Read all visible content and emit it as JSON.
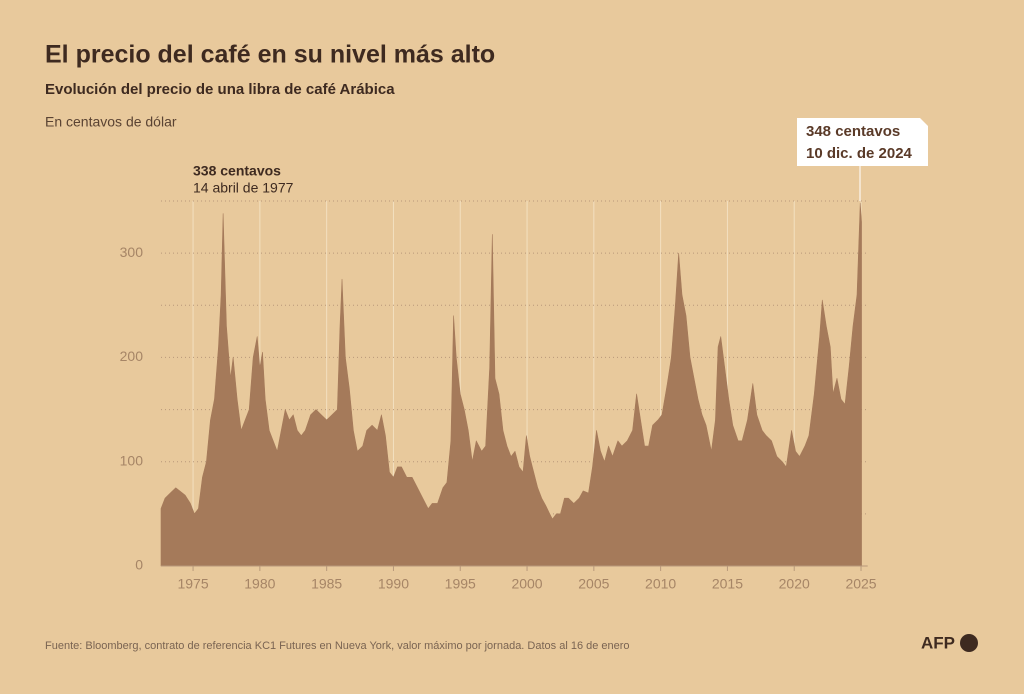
{
  "chart_data": {
    "type": "area",
    "title": "El precio del café en su nivel más alto",
    "subtitle": "Evolución del precio de una libra de café Arábica",
    "y_label": "En centavos de dólar",
    "source": "Fuente: Bloomberg, contrato de referencia KC1 Futures en Nueva York, valor máximo por jornada. Datos al 16 de enero",
    "logo": "AFP",
    "annotations": [
      {
        "lines": [
          "338 centavos",
          "14 abril de 1977"
        ]
      },
      {
        "lines": [
          "348 centavos",
          "10 dic. de 2024"
        ]
      }
    ],
    "color": "#a57a5a",
    "xlim": [
      1972.6,
      2025.5
    ],
    "xticks": [
      1975,
      1980,
      1985,
      1990,
      1995,
      2000,
      2005,
      2010,
      2015,
      2020,
      2025
    ],
    "ylim": [
      0,
      350
    ],
    "yticks": [
      0,
      100,
      200,
      300
    ],
    "ygrid": [
      50,
      100,
      150,
      200,
      250,
      300,
      350
    ],
    "grid": true,
    "x": [
      1972.6,
      1972.9,
      1973.3,
      1973.7,
      1974.0,
      1974.4,
      1974.8,
      1975.1,
      1975.4,
      1975.7,
      1976.0,
      1976.3,
      1976.6,
      1976.9,
      1977.1,
      1977.25,
      1977.5,
      1977.8,
      1978.0,
      1978.3,
      1978.6,
      1978.9,
      1979.2,
      1979.5,
      1979.8,
      1980.0,
      1980.2,
      1980.4,
      1980.7,
      1981.0,
      1981.3,
      1981.6,
      1981.9,
      1982.2,
      1982.5,
      1982.8,
      1983.1,
      1983.4,
      1983.8,
      1984.2,
      1984.6,
      1985.0,
      1985.4,
      1985.8,
      1986.0,
      1986.15,
      1986.4,
      1986.7,
      1987.0,
      1987.3,
      1987.7,
      1988.0,
      1988.4,
      1988.8,
      1989.1,
      1989.4,
      1989.7,
      1990.0,
      1990.3,
      1990.6,
      1991.0,
      1991.4,
      1991.8,
      1992.2,
      1992.6,
      1992.9,
      1993.3,
      1993.7,
      1994.0,
      1994.3,
      1994.5,
      1994.7,
      1995.0,
      1995.3,
      1995.6,
      1995.9,
      1996.2,
      1996.6,
      1996.9,
      1997.2,
      1997.4,
      1997.6,
      1997.9,
      1998.2,
      1998.5,
      1998.8,
      1999.1,
      1999.4,
      1999.7,
      1999.95,
      2000.2,
      2000.5,
      2000.8,
      2001.1,
      2001.4,
      2001.7,
      2001.9,
      2002.2,
      2002.5,
      2002.8,
      2003.1,
      2003.5,
      2003.9,
      2004.2,
      2004.6,
      2004.9,
      2005.2,
      2005.5,
      2005.8,
      2006.1,
      2006.4,
      2006.8,
      2007.1,
      2007.5,
      2007.9,
      2008.2,
      2008.5,
      2008.8,
      2009.1,
      2009.4,
      2009.8,
      2010.1,
      2010.5,
      2010.8,
      2011.1,
      2011.35,
      2011.6,
      2011.9,
      2012.2,
      2012.5,
      2012.8,
      2013.1,
      2013.4,
      2013.8,
      2014.1,
      2014.3,
      2014.5,
      2014.8,
      2015.1,
      2015.4,
      2015.8,
      2016.1,
      2016.5,
      2016.9,
      2017.2,
      2017.6,
      2017.9,
      2018.3,
      2018.7,
      2019.1,
      2019.4,
      2019.8,
      2020.1,
      2020.4,
      2020.8,
      2021.1,
      2021.5,
      2021.9,
      2022.1,
      2022.4,
      2022.7,
      2022.9,
      2023.2,
      2023.5,
      2023.8,
      2024.1,
      2024.4,
      2024.7,
      2024.94,
      2025.04
    ],
    "values": [
      55,
      65,
      70,
      75,
      72,
      68,
      60,
      50,
      55,
      85,
      100,
      140,
      160,
      210,
      260,
      338,
      230,
      180,
      200,
      160,
      130,
      140,
      150,
      200,
      220,
      190,
      205,
      160,
      130,
      120,
      110,
      130,
      150,
      140,
      145,
      130,
      125,
      130,
      145,
      150,
      145,
      140,
      145,
      150,
      230,
      275,
      200,
      170,
      130,
      110,
      115,
      130,
      135,
      130,
      145,
      125,
      90,
      85,
      95,
      95,
      85,
      85,
      75,
      65,
      55,
      60,
      60,
      75,
      80,
      120,
      240,
      200,
      165,
      150,
      130,
      100,
      120,
      110,
      115,
      190,
      318,
      180,
      165,
      130,
      115,
      105,
      110,
      95,
      90,
      125,
      105,
      90,
      75,
      65,
      58,
      50,
      45,
      50,
      50,
      65,
      65,
      60,
      65,
      72,
      70,
      95,
      130,
      110,
      100,
      115,
      105,
      120,
      115,
      120,
      130,
      165,
      140,
      115,
      115,
      135,
      140,
      145,
      175,
      200,
      250,
      300,
      260,
      240,
      200,
      180,
      160,
      145,
      135,
      110,
      140,
      210,
      220,
      190,
      160,
      135,
      120,
      120,
      140,
      175,
      145,
      130,
      125,
      120,
      105,
      100,
      95,
      130,
      110,
      105,
      115,
      125,
      165,
      220,
      255,
      230,
      210,
      165,
      180,
      160,
      155,
      190,
      230,
      260,
      348,
      330
    ]
  }
}
